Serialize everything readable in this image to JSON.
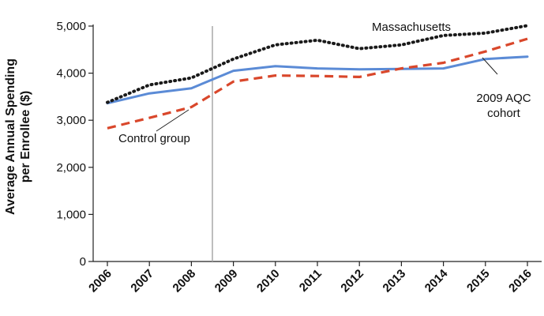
{
  "chart_data": {
    "type": "line",
    "title": "",
    "xlabel": "",
    "ylabel_line1": "Average Annual Spending",
    "ylabel_line2": "per Enrollee ($)",
    "x": [
      2006,
      2007,
      2008,
      2009,
      2010,
      2011,
      2012,
      2013,
      2014,
      2015,
      2016
    ],
    "x_tick_labels": [
      "2006",
      "2007",
      "2008",
      "2009",
      "2010",
      "2011",
      "2012",
      "2013",
      "2014",
      "2015",
      "2016"
    ],
    "ylim": [
      0,
      5000
    ],
    "y_ticks": [
      0,
      1000,
      2000,
      3000,
      4000,
      5000
    ],
    "y_tick_labels": [
      "0",
      "1,000",
      "2,000",
      "3,000",
      "4,000",
      "5,000"
    ],
    "grid": false,
    "reference_line_between": [
      2008,
      2009
    ],
    "series": [
      {
        "name": "Massachusetts",
        "style": "dotted",
        "color": "#1a1a1a",
        "values": [
          3380,
          3750,
          3900,
          4300,
          4600,
          4700,
          4520,
          4600,
          4800,
          4850,
          5010
        ]
      },
      {
        "name": "2009 AQC cohort",
        "style": "solid",
        "color": "#5b8bd6",
        "values": [
          3360,
          3570,
          3680,
          4050,
          4150,
          4100,
          4080,
          4090,
          4100,
          4300,
          4350
        ]
      },
      {
        "name": "Control group",
        "style": "dashed",
        "color": "#d9472b",
        "values": [
          2830,
          3050,
          3280,
          3820,
          3950,
          3940,
          3920,
          4100,
          4220,
          4460,
          4730
        ]
      }
    ],
    "annotations": [
      {
        "series": "Massachusetts",
        "lines": [
          "Massachusetts"
        ]
      },
      {
        "series": "2009 AQC cohort",
        "lines": [
          "2009 AQC",
          "cohort"
        ]
      },
      {
        "series": "Control group",
        "lines": [
          "Control group"
        ]
      }
    ]
  }
}
